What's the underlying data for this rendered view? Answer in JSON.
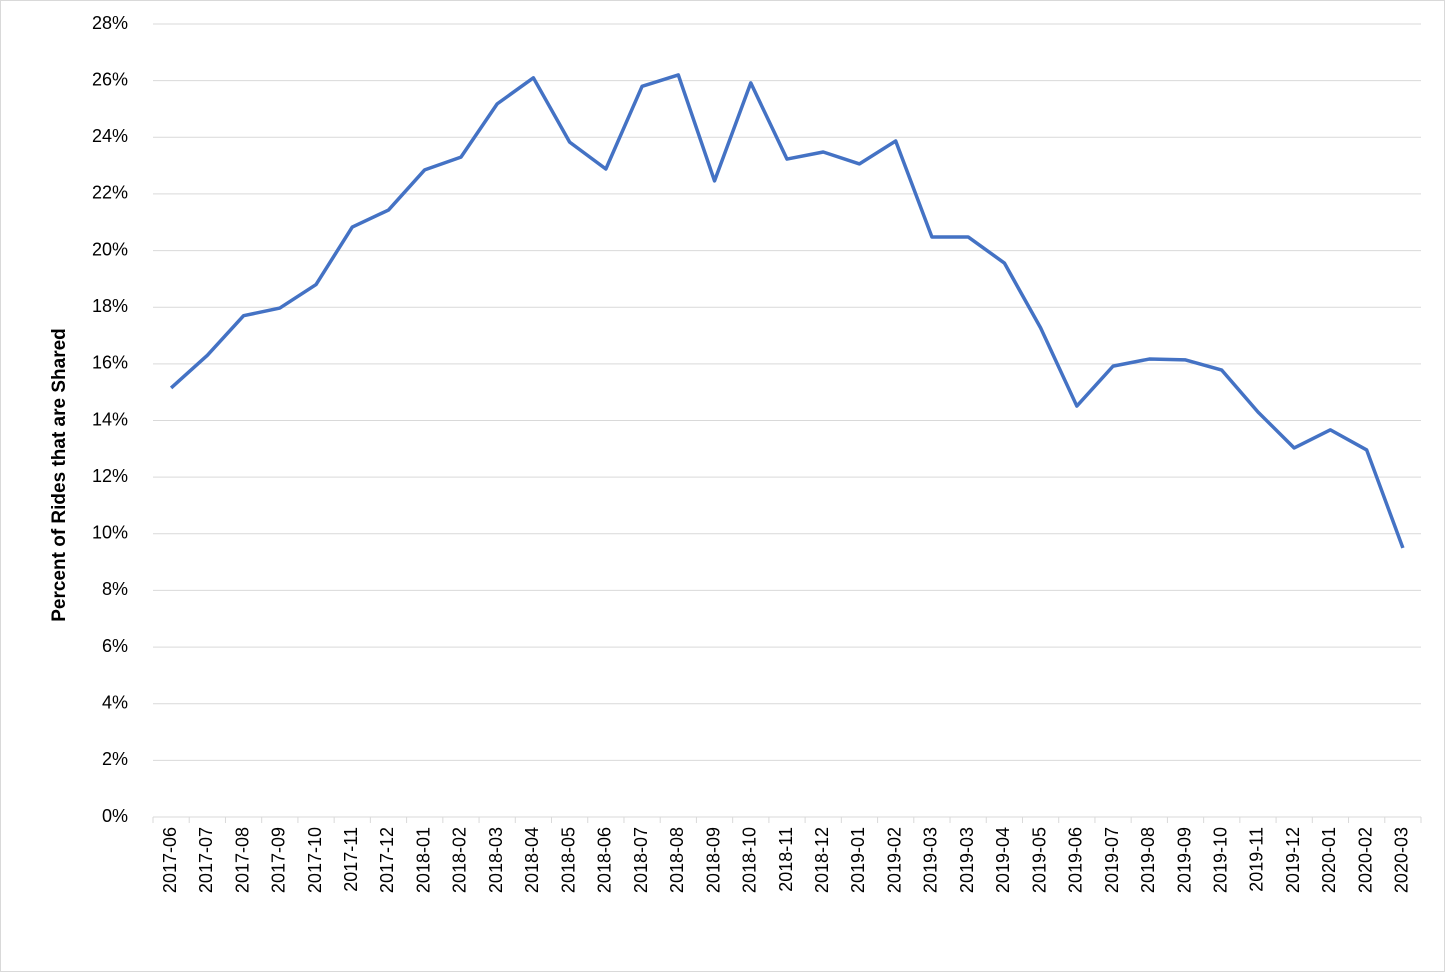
{
  "chart_data": {
    "type": "line",
    "y_axis_label": "Percent of Rides that are Shared",
    "categories": [
      "2017-06",
      "2017-07",
      "2017-08",
      "2017-09",
      "2017-10",
      "2017-11",
      "2017-12",
      "2018-01",
      "2018-02",
      "2018-03",
      "2018-04",
      "2018-05",
      "2018-06",
      "2018-07",
      "2018-08",
      "2018-09",
      "2018-10",
      "2018-11",
      "2018-12",
      "2019-01",
      "2019-02",
      "2019-03",
      "2019-03",
      "2019-04",
      "2019-05",
      "2019-06",
      "2019-07",
      "2019-08",
      "2019-09",
      "2019-10",
      "2019-11",
      "2019-12",
      "2020-01",
      "2020-02",
      "2020-03"
    ],
    "series": [
      {
        "color": "#4472c4",
        "values": [
          15.15,
          16.3,
          17.7,
          17.97,
          18.8,
          20.83,
          21.43,
          22.85,
          23.3,
          25.18,
          26.1,
          23.83,
          22.88,
          25.8,
          26.2,
          22.46,
          25.92,
          23.23,
          23.48,
          23.06,
          23.87,
          20.48,
          20.48,
          19.56,
          17.27,
          14.51,
          15.92,
          16.17,
          16.14,
          15.78,
          14.3,
          13.03,
          13.67,
          12.96,
          9.5
        ]
      }
    ],
    "ylim": [
      0,
      28
    ],
    "yticks": [
      {
        "value": 0,
        "label": "0%"
      },
      {
        "value": 2,
        "label": "2%"
      },
      {
        "value": 4,
        "label": "4%"
      },
      {
        "value": 6,
        "label": "6%"
      },
      {
        "value": 8,
        "label": "8%"
      },
      {
        "value": 10,
        "label": "10%"
      },
      {
        "value": 12,
        "label": "12%"
      },
      {
        "value": 14,
        "label": "14%"
      },
      {
        "value": 16,
        "label": "16%"
      },
      {
        "value": 18,
        "label": "18%"
      },
      {
        "value": 20,
        "label": "20%"
      },
      {
        "value": 22,
        "label": "22%"
      },
      {
        "value": 24,
        "label": "24%"
      },
      {
        "value": 26,
        "label": "26%"
      },
      {
        "value": 28,
        "label": "28%"
      }
    ],
    "grid": true
  }
}
